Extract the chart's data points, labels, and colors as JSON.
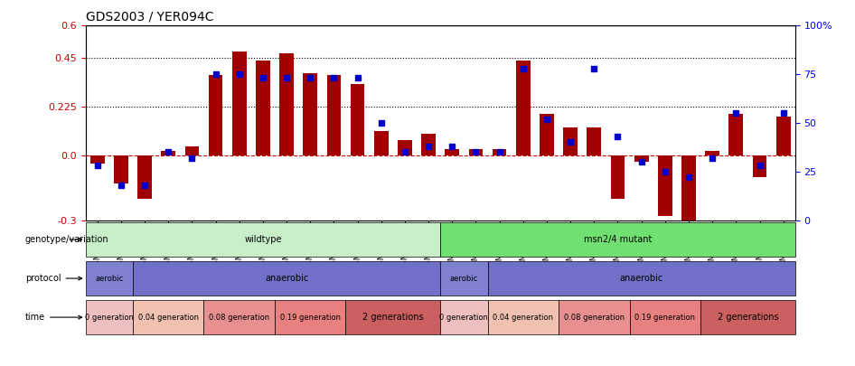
{
  "title": "GDS2003 / YER094C",
  "samples": [
    "GSM41252",
    "GSM41253",
    "GSM41254",
    "GSM41255",
    "GSM41256",
    "GSM41257",
    "GSM41258",
    "GSM41259",
    "GSM41260",
    "GSM41264",
    "GSM41265",
    "GSM41266",
    "GSM41279",
    "GSM41280",
    "GSM41281",
    "GSM33504",
    "GSM33505",
    "GSM33506",
    "GSM33507",
    "GSM33508",
    "GSM33509",
    "GSM33510",
    "GSM33511",
    "GSM33512",
    "GSM33514",
    "GSM33516",
    "GSM33518",
    "GSM33520",
    "GSM33522",
    "GSM33523"
  ],
  "log2_ratio": [
    -0.04,
    -0.13,
    -0.2,
    0.02,
    0.04,
    0.37,
    0.48,
    0.44,
    0.47,
    0.38,
    0.37,
    0.33,
    0.11,
    0.07,
    0.1,
    0.03,
    0.03,
    0.03,
    0.44,
    0.19,
    0.13,
    0.13,
    -0.2,
    -0.03,
    -0.28,
    -0.32,
    0.02,
    0.19,
    -0.1,
    0.18
  ],
  "percentile_rank": [
    28,
    18,
    18,
    35,
    32,
    75,
    75,
    73,
    73,
    73,
    73,
    73,
    50,
    35,
    38,
    38,
    35,
    35,
    78,
    52,
    40,
    78,
    43,
    30,
    25,
    22,
    32,
    55,
    28,
    55
  ],
  "bar_color": "#a00000",
  "dot_color": "#0000cc",
  "ylim_left": [
    -0.3,
    0.6
  ],
  "ylim_right": [
    0,
    100
  ],
  "yticks_left": [
    -0.3,
    0.0,
    0.225,
    0.45,
    0.6
  ],
  "yticks_right": [
    0,
    25,
    50,
    75,
    100
  ],
  "hlines": [
    0.225,
    0.45
  ],
  "background_color": "#ffffff",
  "annotation_rows": [
    {
      "label": "genotype/variation",
      "items": [
        {
          "text": "wildtype",
          "start": 0,
          "end": 15,
          "color": "#c8f0c8"
        },
        {
          "text": "msn2/4 mutant",
          "start": 15,
          "end": 30,
          "color": "#70e070"
        }
      ]
    },
    {
      "label": "protocol",
      "items": [
        {
          "text": "aerobic",
          "start": 0,
          "end": 2,
          "color": "#8080d0"
        },
        {
          "text": "anaerobic",
          "start": 2,
          "end": 15,
          "color": "#7070c8"
        },
        {
          "text": "aerobic",
          "start": 15,
          "end": 17,
          "color": "#8080d0"
        },
        {
          "text": "anaerobic",
          "start": 17,
          "end": 30,
          "color": "#7070c8"
        }
      ]
    },
    {
      "label": "time",
      "items": [
        {
          "text": "0 generation",
          "start": 0,
          "end": 2,
          "color": "#f0c0c0"
        },
        {
          "text": "0.04 generation",
          "start": 2,
          "end": 5,
          "color": "#f0c0b0"
        },
        {
          "text": "0.08 generation",
          "start": 5,
          "end": 8,
          "color": "#e89090"
        },
        {
          "text": "0.19 generation",
          "start": 8,
          "end": 11,
          "color": "#e88080"
        },
        {
          "text": "2 generations",
          "start": 11,
          "end": 15,
          "color": "#cc6060"
        },
        {
          "text": "0 generation",
          "start": 15,
          "end": 17,
          "color": "#f0c0c0"
        },
        {
          "text": "0.04 generation",
          "start": 17,
          "end": 20,
          "color": "#f0c0b0"
        },
        {
          "text": "0.08 generation",
          "start": 20,
          "end": 23,
          "color": "#e89090"
        },
        {
          "text": "0.19 generation",
          "start": 23,
          "end": 26,
          "color": "#e88080"
        },
        {
          "text": "2 generations",
          "start": 26,
          "end": 30,
          "color": "#cc6060"
        }
      ]
    }
  ]
}
